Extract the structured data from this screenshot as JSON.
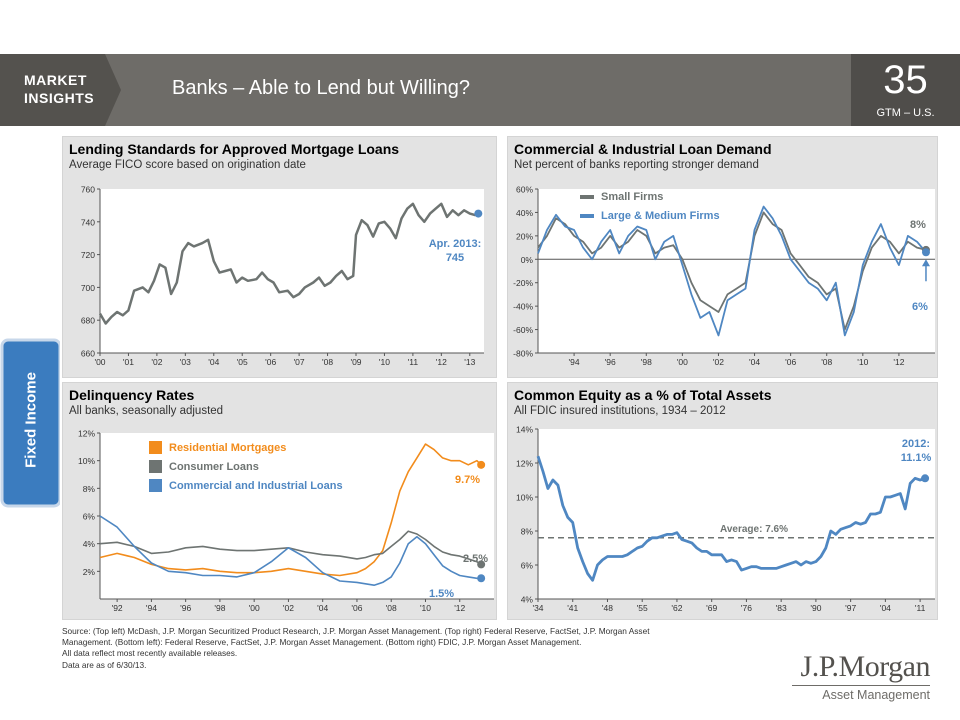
{
  "header": {
    "brand_line1": "MARKET",
    "brand_line2": "INSIGHTS",
    "title": "Banks – Able to Lend but Willing?",
    "page_number": "35",
    "page_sub": "GTM – U.S."
  },
  "side_tab": {
    "label": "Fixed Income"
  },
  "colors": {
    "header_bg": "#6e6c68",
    "side_tab": "#3b7cbf",
    "gray_series": "#6e7472",
    "blue_series": "#4f87c2",
    "orange_series": "#f28c1c",
    "annotation_blue": "#4f87c2"
  },
  "chart_data": [
    {
      "id": "mortgage",
      "type": "line",
      "title": "Lending Standards for Approved Mortgage Loans",
      "subtitle": "Average FICO score based on origination date",
      "ylim": [
        660,
        760
      ],
      "yticks": [
        660,
        680,
        700,
        720,
        740,
        760
      ],
      "ytick_labels": [
        "660",
        "680",
        "700",
        "720",
        "740",
        "760"
      ],
      "xlim": [
        2000,
        2013.5
      ],
      "xticks": [
        2000,
        2001,
        2002,
        2003,
        2004,
        2005,
        2006,
        2007,
        2008,
        2009,
        2010,
        2011,
        2012,
        2013
      ],
      "xtick_labels": [
        "'00",
        "'01",
        "'02",
        "'03",
        "'04",
        "'05",
        "'06",
        "'07",
        "'08",
        "'09",
        "'10",
        "'11",
        "'12",
        "'13"
      ],
      "series": [
        {
          "color": "#6e7472",
          "x": [
            2000.0,
            2000.2,
            2000.4,
            2000.6,
            2000.8,
            2001.0,
            2001.2,
            2001.5,
            2001.7,
            2001.9,
            2002.1,
            2002.3,
            2002.5,
            2002.7,
            2002.9,
            2003.1,
            2003.3,
            2003.6,
            2003.8,
            2004.0,
            2004.2,
            2004.4,
            2004.6,
            2004.8,
            2005.0,
            2005.2,
            2005.5,
            2005.7,
            2005.9,
            2006.1,
            2006.3,
            2006.6,
            2006.8,
            2007.0,
            2007.2,
            2007.5,
            2007.7,
            2007.9,
            2008.1,
            2008.3,
            2008.5,
            2008.7,
            2008.9,
            2009.0,
            2009.2,
            2009.4,
            2009.6,
            2009.8,
            2010.0,
            2010.2,
            2010.4,
            2010.6,
            2010.8,
            2011.0,
            2011.2,
            2011.4,
            2011.6,
            2011.8,
            2012.0,
            2012.2,
            2012.4,
            2012.6,
            2012.8,
            2013.0,
            2013.2
          ],
          "values": [
            684,
            678,
            682,
            685,
            683,
            686,
            698,
            700,
            697,
            704,
            714,
            712,
            696,
            703,
            722,
            727,
            725,
            727,
            729,
            716,
            709,
            710,
            711,
            703,
            706,
            704,
            705,
            709,
            705,
            703,
            697,
            698,
            694,
            696,
            700,
            703,
            706,
            701,
            703,
            707,
            710,
            705,
            707,
            732,
            741,
            738,
            731,
            739,
            740,
            736,
            730,
            742,
            748,
            751,
            744,
            740,
            745,
            748,
            751,
            743,
            747,
            744,
            747,
            745,
            744
          ]
        }
      ],
      "end_point": {
        "x": 2013.3,
        "y": 745,
        "color": "#4f87c2"
      },
      "annotations": [
        {
          "text_line1": "Apr. 2013:",
          "text_line2": "745",
          "color": "#4f87c2"
        }
      ]
    },
    {
      "id": "ci_demand",
      "type": "line",
      "title": "Commercial & Industrial Loan Demand",
      "subtitle": "Net percent of banks reporting stronger demand",
      "ylim": [
        -80,
        60
      ],
      "yticks": [
        -80,
        -60,
        -40,
        -20,
        0,
        20,
        40,
        60
      ],
      "ytick_labels": [
        "-80%",
        "-60%",
        "-40%",
        "-20%",
        "0%",
        "20%",
        "40%",
        "60%"
      ],
      "xlim": [
        1992,
        2014
      ],
      "xticks": [
        1994,
        1996,
        1998,
        2000,
        2002,
        2004,
        2006,
        2008,
        2010,
        2012
      ],
      "xtick_labels": [
        "'94",
        "'96",
        "'98",
        "'00",
        "'02",
        "'04",
        "'06",
        "'08",
        "'10",
        "'12"
      ],
      "legend": [
        "Small Firms",
        "Large & Medium Firms"
      ],
      "series": [
        {
          "name": "Small Firms",
          "color": "#6e7472",
          "x": [
            1992.0,
            1992.5,
            1993.0,
            1993.5,
            1994.0,
            1994.5,
            1995.0,
            1995.5,
            1996.0,
            1996.5,
            1997.0,
            1997.5,
            1998.0,
            1998.5,
            1999.0,
            1999.5,
            2000.0,
            2000.5,
            2001.0,
            2001.5,
            2002.0,
            2002.5,
            2003.0,
            2003.5,
            2004.0,
            2004.5,
            2005.0,
            2005.5,
            2006.0,
            2006.5,
            2007.0,
            2007.5,
            2008.0,
            2008.5,
            2009.0,
            2009.5,
            2010.0,
            2010.5,
            2011.0,
            2011.5,
            2012.0,
            2012.5,
            2013.0,
            2013.5
          ],
          "values": [
            10,
            20,
            35,
            30,
            20,
            15,
            5,
            10,
            20,
            10,
            15,
            25,
            20,
            5,
            10,
            12,
            0,
            -20,
            -35,
            -40,
            -45,
            -30,
            -25,
            -20,
            20,
            40,
            30,
            25,
            5,
            -5,
            -15,
            -20,
            -30,
            -25,
            -60,
            -40,
            -10,
            10,
            20,
            15,
            5,
            15,
            10,
            8
          ]
        },
        {
          "name": "Large & Medium Firms",
          "color": "#4f87c2",
          "x": [
            1992.0,
            1992.5,
            1993.0,
            1993.5,
            1994.0,
            1994.5,
            1995.0,
            1995.5,
            1996.0,
            1996.5,
            1997.0,
            1997.5,
            1998.0,
            1998.5,
            1999.0,
            1999.5,
            2000.0,
            2000.5,
            2001.0,
            2001.5,
            2002.0,
            2002.5,
            2003.0,
            2003.5,
            2004.0,
            2004.5,
            2005.0,
            2005.5,
            2006.0,
            2006.5,
            2007.0,
            2007.5,
            2008.0,
            2008.5,
            2009.0,
            2009.5,
            2010.0,
            2010.5,
            2011.0,
            2011.5,
            2012.0,
            2012.5,
            2013.0,
            2013.5
          ],
          "values": [
            5,
            25,
            38,
            28,
            25,
            10,
            0,
            15,
            25,
            5,
            20,
            28,
            25,
            0,
            15,
            20,
            -5,
            -30,
            -50,
            -45,
            -65,
            -35,
            -30,
            -25,
            25,
            45,
            35,
            20,
            0,
            -10,
            -20,
            -25,
            -35,
            -20,
            -65,
            -45,
            -5,
            15,
            30,
            10,
            -5,
            20,
            15,
            6
          ]
        }
      ],
      "end_points": [
        {
          "x": 2013.5,
          "y": 8,
          "color": "#6e7472"
        },
        {
          "x": 2013.5,
          "y": 6,
          "color": "#4f87c2"
        }
      ],
      "annotations": [
        {
          "text": "8%",
          "color": "#6e7472"
        },
        {
          "text": "6%",
          "color": "#4f87c2"
        }
      ]
    },
    {
      "id": "delinquency",
      "type": "line",
      "title": "Delinquency Rates",
      "subtitle": "All banks, seasonally adjusted",
      "ylim": [
        0,
        12
      ],
      "yticks": [
        2,
        4,
        6,
        8,
        10,
        12
      ],
      "ytick_labels": [
        "2%",
        "4%",
        "6%",
        "8%",
        "10%",
        "12%"
      ],
      "xlim": [
        1991,
        2014
      ],
      "xticks": [
        1992,
        1994,
        1996,
        1998,
        2000,
        2002,
        2004,
        2006,
        2008,
        2010,
        2012
      ],
      "xtick_labels": [
        "'92",
        "'94",
        "'96",
        "'98",
        "'00",
        "'02",
        "'04",
        "'06",
        "'08",
        "'10",
        "'12"
      ],
      "legend": [
        "Residential Mortgages",
        "Consumer Loans",
        "Commercial and Industrial Loans"
      ],
      "series": [
        {
          "name": "Residential Mortgages",
          "color": "#f28c1c",
          "x": [
            1991.0,
            1992.0,
            1993.0,
            1994.0,
            1995.0,
            1996.0,
            1997.0,
            1998.0,
            1999.0,
            2000.0,
            2001.0,
            2002.0,
            2003.0,
            2004.0,
            2005.0,
            2006.0,
            2006.5,
            2007.0,
            2007.5,
            2008.0,
            2008.5,
            2009.0,
            2009.5,
            2010.0,
            2010.5,
            2011.0,
            2011.5,
            2012.0,
            2012.5,
            2013.0,
            2013.25
          ],
          "values": [
            3.0,
            3.3,
            3.0,
            2.5,
            2.2,
            2.1,
            2.2,
            2.0,
            1.9,
            1.9,
            2.0,
            2.2,
            2.0,
            1.8,
            1.7,
            1.9,
            2.2,
            2.7,
            3.5,
            5.5,
            7.8,
            9.2,
            10.2,
            11.2,
            10.8,
            10.2,
            10.0,
            10.0,
            9.7,
            10.0,
            9.7
          ]
        },
        {
          "name": "Consumer Loans",
          "color": "#6e7472",
          "x": [
            1991.0,
            1992.0,
            1993.0,
            1994.0,
            1995.0,
            1996.0,
            1997.0,
            1998.0,
            1999.0,
            2000.0,
            2001.0,
            2002.0,
            2003.0,
            2004.0,
            2005.0,
            2006.0,
            2006.5,
            2007.0,
            2007.5,
            2008.0,
            2008.5,
            2009.0,
            2009.5,
            2010.0,
            2010.5,
            2011.0,
            2011.5,
            2012.0,
            2012.5,
            2013.0,
            2013.25
          ],
          "values": [
            4.0,
            4.1,
            3.8,
            3.3,
            3.4,
            3.7,
            3.8,
            3.6,
            3.5,
            3.5,
            3.6,
            3.7,
            3.4,
            3.2,
            3.1,
            2.9,
            3.0,
            3.2,
            3.3,
            3.8,
            4.3,
            4.9,
            4.7,
            4.3,
            3.8,
            3.4,
            3.2,
            3.1,
            2.9,
            2.7,
            2.5
          ]
        },
        {
          "name": "Commercial and Industrial Loans",
          "color": "#4f87c2",
          "x": [
            1991.0,
            1992.0,
            1993.0,
            1994.0,
            1995.0,
            1996.0,
            1997.0,
            1998.0,
            1999.0,
            2000.0,
            2001.0,
            2002.0,
            2003.0,
            2004.0,
            2005.0,
            2006.0,
            2006.5,
            2007.0,
            2007.5,
            2008.0,
            2008.5,
            2009.0,
            2009.5,
            2010.0,
            2010.5,
            2011.0,
            2011.5,
            2012.0,
            2012.5,
            2013.0,
            2013.25
          ],
          "values": [
            6.0,
            5.2,
            3.8,
            2.6,
            2.0,
            1.9,
            1.7,
            1.7,
            1.6,
            1.9,
            2.7,
            3.7,
            3.0,
            1.9,
            1.3,
            1.2,
            1.1,
            1.0,
            1.2,
            1.6,
            2.6,
            4.0,
            4.5,
            4.0,
            3.2,
            2.4,
            2.0,
            1.7,
            1.6,
            1.5,
            1.5
          ]
        }
      ],
      "end_points": [
        {
          "x": 2013.25,
          "y": 9.7,
          "color": "#f28c1c"
        },
        {
          "x": 2013.25,
          "y": 2.5,
          "color": "#6e7472"
        },
        {
          "x": 2013.25,
          "y": 1.5,
          "color": "#4f87c2"
        }
      ],
      "annotations": [
        {
          "text": "9.7%",
          "color": "#f28c1c"
        },
        {
          "text": "2.5%",
          "color": "#6e7472"
        },
        {
          "text": "1.5%",
          "color": "#4f87c2"
        }
      ]
    },
    {
      "id": "equity",
      "type": "line",
      "title": "Common Equity as a % of Total Assets",
      "subtitle": "All FDIC insured institutions, 1934 – 2012",
      "ylim": [
        4,
        14
      ],
      "yticks": [
        4,
        6,
        8,
        10,
        12,
        14
      ],
      "ytick_labels": [
        "4%",
        "6%",
        "8%",
        "10%",
        "12%",
        "14%"
      ],
      "xlim": [
        1934,
        2014
      ],
      "xticks": [
        1934,
        1941,
        1948,
        1955,
        1962,
        1969,
        1976,
        1983,
        1990,
        1997,
        2004,
        2011
      ],
      "xtick_labels": [
        "'34",
        "'41",
        "'48",
        "'55",
        "'62",
        "'69",
        "'76",
        "'83",
        "'90",
        "'97",
        "'04",
        "'11"
      ],
      "average": {
        "value": 7.6,
        "label": "Average: 7.6%"
      },
      "series": [
        {
          "color": "#4f87c2",
          "x": [
            1934,
            1935,
            1936,
            1937,
            1938,
            1939,
            1940,
            1941,
            1942,
            1943,
            1944,
            1945,
            1946,
            1947,
            1948,
            1949,
            1950,
            1951,
            1952,
            1953,
            1954,
            1955,
            1956,
            1957,
            1958,
            1959,
            1960,
            1961,
            1962,
            1963,
            1964,
            1965,
            1966,
            1967,
            1968,
            1969,
            1970,
            1971,
            1972,
            1973,
            1974,
            1975,
            1976,
            1977,
            1978,
            1979,
            1980,
            1981,
            1982,
            1983,
            1984,
            1985,
            1986,
            1987,
            1988,
            1989,
            1990,
            1991,
            1992,
            1993,
            1994,
            1995,
            1996,
            1997,
            1998,
            1999,
            2000,
            2001,
            2002,
            2003,
            2004,
            2005,
            2006,
            2007,
            2008,
            2009,
            2010,
            2011,
            2012
          ],
          "values": [
            12.4,
            11.5,
            10.5,
            11.0,
            10.7,
            9.5,
            8.8,
            8.5,
            7.0,
            6.2,
            5.5,
            5.1,
            6.0,
            6.3,
            6.5,
            6.5,
            6.5,
            6.5,
            6.6,
            6.8,
            7.0,
            7.1,
            7.4,
            7.6,
            7.6,
            7.7,
            7.8,
            7.8,
            7.9,
            7.5,
            7.4,
            7.3,
            7.0,
            6.8,
            6.8,
            6.6,
            6.6,
            6.6,
            6.2,
            6.3,
            6.2,
            5.7,
            5.8,
            5.9,
            5.9,
            5.8,
            5.8,
            5.8,
            5.8,
            5.9,
            6.0,
            6.1,
            6.2,
            6.0,
            6.2,
            6.1,
            6.2,
            6.5,
            7.0,
            8.0,
            7.8,
            8.1,
            8.2,
            8.3,
            8.5,
            8.4,
            8.5,
            9.0,
            9.0,
            9.1,
            10.0,
            10.0,
            10.1,
            10.2,
            9.3,
            10.8,
            11.1,
            11.0,
            11.1
          ]
        }
      ],
      "end_point": {
        "x": 2012,
        "y": 11.1,
        "color": "#4f87c2"
      },
      "annotations": [
        {
          "text_line1": "2012:",
          "text_line2": "11.1%",
          "color": "#4f87c2"
        }
      ]
    }
  ],
  "footnotes": [
    "Source: (Top left) McDash, J.P. Morgan Securitized Product Research, J.P. Morgan Asset Management. (Top right) Federal Reserve, FactSet, J.P. Morgan Asset",
    "Management. (Bottom left): Federal Reserve, FactSet, J.P. Morgan Asset Management. (Bottom right) FDIC, J.P. Morgan Asset Management.",
    "All data reflect most recently available releases.",
    "Data are as of 6/30/13."
  ],
  "logo": {
    "name": "J.P.Morgan",
    "sub": "Asset Management"
  }
}
